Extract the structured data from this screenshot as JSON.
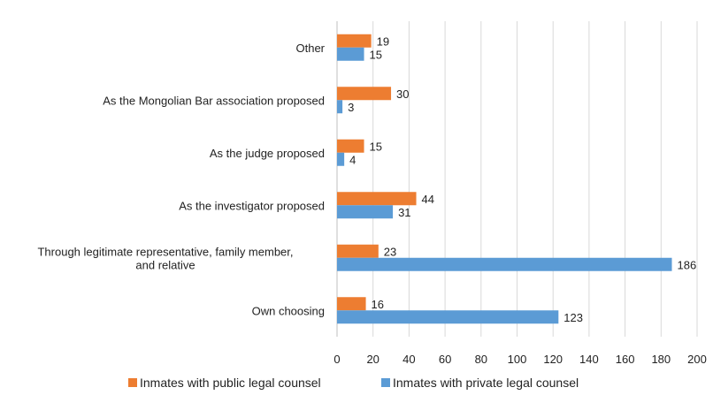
{
  "chart_data": {
    "type": "bar",
    "orientation": "horizontal",
    "categories": [
      "Other",
      "As the Mongolian Bar association proposed",
      "As the judge proposed",
      "As the investigator proposed",
      "Through legitimate representative, family member, and relative",
      "Own choosing"
    ],
    "series": [
      {
        "name": "Inmates with public legal counsel",
        "color": "#ED7D31",
        "values": [
          19,
          30,
          15,
          44,
          23,
          16
        ]
      },
      {
        "name": "Inmates with private legal counsel",
        "color": "#5B9BD5",
        "values": [
          15,
          3,
          4,
          31,
          186,
          123
        ]
      }
    ],
    "xlim": [
      0,
      200
    ],
    "xticks": [
      0,
      20,
      40,
      60,
      80,
      100,
      120,
      140,
      160,
      180,
      200
    ],
    "grid": "vertical",
    "legend": "bottom",
    "data_labels": true
  }
}
